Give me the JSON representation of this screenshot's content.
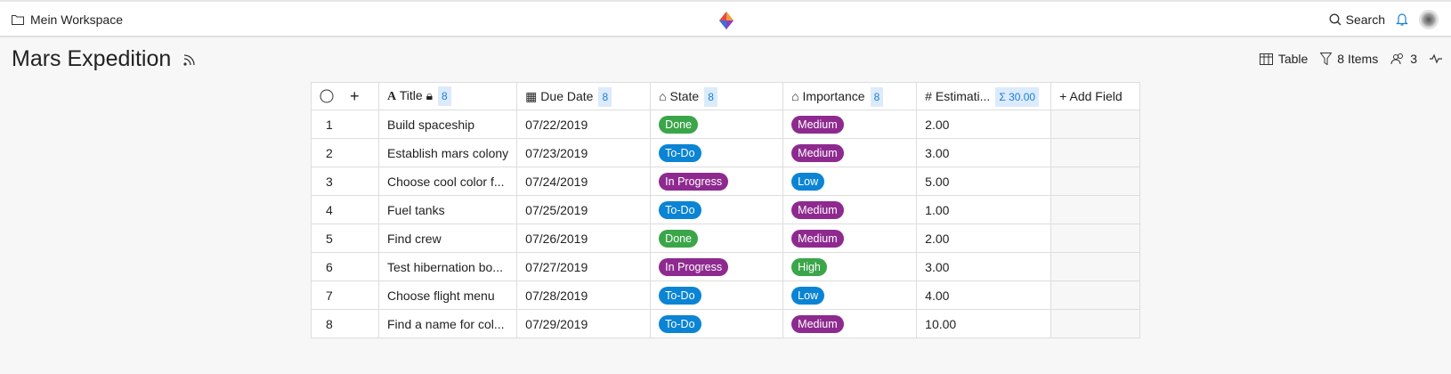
{
  "topbar": {
    "workspace": "Mein Workspace",
    "search": "Search"
  },
  "page": {
    "title": "Mars Expedition"
  },
  "toolbar": {
    "view": "Table",
    "items": "8 Items",
    "members": "3"
  },
  "colors": {
    "Done": "#3ba54a",
    "To-Do": "#0b84d4",
    "In Progress": "#8e2a8f",
    "Medium": "#8e2a8f",
    "Low": "#0b84d4",
    "High": "#3ba54a"
  },
  "columns": {
    "title": "Title",
    "title_count": "8",
    "due": "Due Date",
    "due_count": "8",
    "state": "State",
    "state_count": "8",
    "importance": "Importance",
    "importance_count": "8",
    "estimation": "Estimati...",
    "estimation_sum": "Σ 30.00",
    "add": "Add Field"
  },
  "rows": [
    {
      "n": "1",
      "title": "Build spaceship",
      "due": "07/22/2019",
      "state": "Done",
      "importance": "Medium",
      "est": "2.00"
    },
    {
      "n": "2",
      "title": "Establish mars colony",
      "due": "07/23/2019",
      "state": "To-Do",
      "importance": "Medium",
      "est": "3.00"
    },
    {
      "n": "3",
      "title": "Choose cool color f...",
      "due": "07/24/2019",
      "state": "In Progress",
      "importance": "Low",
      "est": "5.00"
    },
    {
      "n": "4",
      "title": "Fuel tanks",
      "due": "07/25/2019",
      "state": "To-Do",
      "importance": "Medium",
      "est": "1.00"
    },
    {
      "n": "5",
      "title": "Find crew",
      "due": "07/26/2019",
      "state": "Done",
      "importance": "Medium",
      "est": "2.00"
    },
    {
      "n": "6",
      "title": "Test hibernation bo...",
      "due": "07/27/2019",
      "state": "In Progress",
      "importance": "High",
      "est": "3.00"
    },
    {
      "n": "7",
      "title": "Choose flight menu",
      "due": "07/28/2019",
      "state": "To-Do",
      "importance": "Low",
      "est": "4.00"
    },
    {
      "n": "8",
      "title": "Find a name for col...",
      "due": "07/29/2019",
      "state": "To-Do",
      "importance": "Medium",
      "est": "10.00"
    }
  ]
}
